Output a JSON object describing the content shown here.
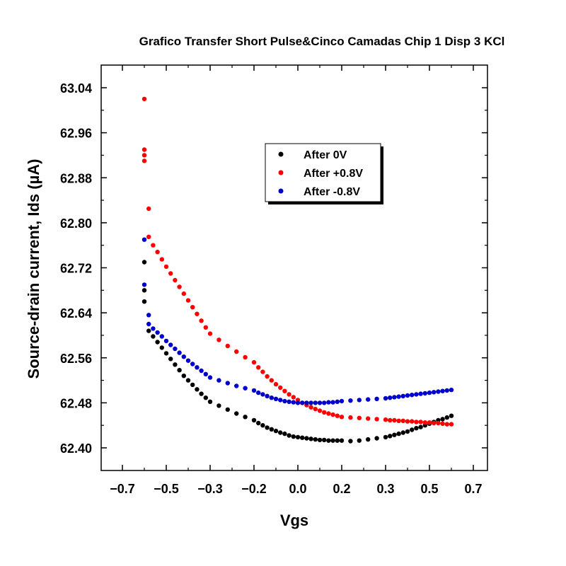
{
  "chart_data": {
    "type": "scatter",
    "title": "Grafico Transfer Short Pulse&Cinco Camadas Chip 1 Disp 3 KCl",
    "xlabel": "Vgs",
    "ylabel": "Source-drain current, Ids (µA)",
    "xlim": [
      -0.75,
      0.75
    ],
    "ylim": [
      62.36,
      63.08
    ],
    "x_ticks": [
      -0.7,
      -0.5,
      -0.3,
      -0.2,
      0.0,
      0.2,
      0.3,
      0.5,
      0.7
    ],
    "x_tick_labels": [
      "−0.7",
      "−0.5",
      "−0.3",
      "−0.2",
      "0.0",
      "0.2",
      "0.3",
      "0.5",
      "0.7"
    ],
    "y_ticks": [
      62.4,
      62.48,
      62.56,
      62.64,
      62.72,
      62.8,
      62.88,
      62.96,
      63.04
    ],
    "y_tick_labels": [
      "62.40",
      "62.48",
      "62.56",
      "62.64",
      "62.72",
      "62.80",
      "62.88",
      "62.96",
      "63.04"
    ],
    "grid": false,
    "legend_position": "top-center",
    "series": [
      {
        "name": "After 0V",
        "color": "#000000",
        "x": [
          -0.6,
          -0.6,
          -0.6,
          -0.58,
          -0.56,
          -0.54,
          -0.52,
          -0.5,
          -0.48,
          -0.46,
          -0.44,
          -0.42,
          -0.4,
          -0.38,
          -0.36,
          -0.34,
          -0.32,
          -0.3,
          -0.28,
          -0.26,
          -0.24,
          -0.22,
          -0.2,
          -0.18,
          -0.16,
          -0.14,
          -0.12,
          -0.1,
          -0.08,
          -0.06,
          -0.04,
          -0.02,
          0.0,
          0.02,
          0.04,
          0.06,
          0.08,
          0.1,
          0.12,
          0.14,
          0.16,
          0.18,
          0.2,
          0.22,
          0.24,
          0.26,
          0.28,
          0.3,
          0.32,
          0.34,
          0.36,
          0.38,
          0.4,
          0.42,
          0.44,
          0.46,
          0.48,
          0.5,
          0.52,
          0.54,
          0.56,
          0.58,
          0.6
        ],
        "y": [
          62.73,
          62.68,
          62.66,
          62.608,
          62.598,
          62.588,
          62.578,
          62.568,
          62.558,
          62.548,
          62.538,
          62.528,
          62.52,
          62.512,
          62.504,
          62.496,
          62.489,
          62.482,
          62.475,
          62.468,
          62.461,
          62.455,
          62.449,
          62.444,
          62.44,
          62.436,
          62.433,
          62.43,
          62.427,
          62.425,
          62.422,
          62.42,
          62.419,
          62.418,
          62.417,
          62.416,
          62.415,
          62.414,
          62.414,
          62.413,
          62.413,
          62.413,
          62.413,
          62.412,
          62.413,
          62.415,
          62.417,
          62.419,
          62.421,
          62.423,
          62.425,
          62.427,
          62.429,
          62.432,
          62.435,
          62.437,
          62.44,
          62.443,
          62.446,
          62.449,
          62.451,
          62.454,
          62.457
        ]
      },
      {
        "name": "After +0.8V",
        "color": "#ff0000",
        "x": [
          -0.6,
          -0.6,
          -0.6,
          -0.6,
          -0.58,
          -0.58,
          -0.56,
          -0.54,
          -0.52,
          -0.5,
          -0.48,
          -0.46,
          -0.44,
          -0.42,
          -0.4,
          -0.38,
          -0.36,
          -0.34,
          -0.32,
          -0.3,
          -0.28,
          -0.26,
          -0.24,
          -0.22,
          -0.2,
          -0.18,
          -0.16,
          -0.14,
          -0.12,
          -0.1,
          -0.08,
          -0.06,
          -0.04,
          -0.02,
          0.0,
          0.02,
          0.04,
          0.06,
          0.08,
          0.1,
          0.12,
          0.14,
          0.16,
          0.18,
          0.2,
          0.22,
          0.24,
          0.26,
          0.28,
          0.3,
          0.32,
          0.34,
          0.36,
          0.38,
          0.4,
          0.42,
          0.44,
          0.46,
          0.48,
          0.5,
          0.52,
          0.54,
          0.56,
          0.58,
          0.6
        ],
        "y": [
          63.02,
          62.93,
          62.92,
          62.91,
          62.825,
          62.775,
          62.76,
          62.748,
          62.735,
          62.722,
          62.71,
          62.698,
          62.686,
          62.674,
          62.662,
          62.65,
          62.638,
          62.626,
          62.614,
          62.603,
          62.592,
          62.581,
          62.571,
          62.561,
          62.552,
          62.543,
          62.535,
          62.527,
          62.52,
          62.513,
          62.507,
          62.501,
          62.495,
          62.49,
          62.485,
          62.48,
          62.476,
          62.472,
          62.469,
          62.466,
          62.463,
          62.461,
          62.459,
          62.457,
          62.455,
          62.454,
          62.453,
          62.452,
          62.451,
          62.45,
          62.449,
          62.449,
          62.448,
          62.448,
          62.447,
          62.447,
          62.446,
          62.446,
          62.445,
          62.445,
          62.444,
          62.444,
          62.443,
          62.442,
          62.442
        ]
      },
      {
        "name": "After -0.8V",
        "color": "#0000cc",
        "x": [
          -0.6,
          -0.6,
          -0.58,
          -0.58,
          -0.56,
          -0.54,
          -0.52,
          -0.5,
          -0.48,
          -0.46,
          -0.44,
          -0.42,
          -0.4,
          -0.38,
          -0.36,
          -0.34,
          -0.32,
          -0.3,
          -0.28,
          -0.26,
          -0.24,
          -0.22,
          -0.2,
          -0.18,
          -0.16,
          -0.14,
          -0.12,
          -0.1,
          -0.08,
          -0.06,
          -0.04,
          -0.02,
          0.0,
          0.02,
          0.04,
          0.06,
          0.08,
          0.1,
          0.12,
          0.14,
          0.16,
          0.18,
          0.2,
          0.22,
          0.24,
          0.26,
          0.28,
          0.3,
          0.32,
          0.34,
          0.36,
          0.38,
          0.4,
          0.42,
          0.44,
          0.46,
          0.48,
          0.5,
          0.52,
          0.54,
          0.56,
          0.58,
          0.6
        ],
        "y": [
          62.77,
          62.69,
          62.636,
          62.62,
          62.612,
          62.605,
          62.598,
          62.59,
          62.583,
          62.576,
          62.569,
          62.562,
          62.555,
          62.549,
          62.543,
          62.537,
          62.531,
          62.525,
          62.52,
          62.515,
          62.51,
          62.506,
          62.502,
          62.498,
          62.495,
          62.492,
          62.489,
          62.487,
          62.485,
          62.483,
          62.482,
          62.481,
          62.48,
          62.48,
          62.48,
          62.48,
          62.48,
          62.48,
          62.48,
          62.481,
          62.481,
          62.482,
          62.483,
          62.484,
          62.485,
          62.486,
          62.487,
          62.488,
          62.489,
          62.49,
          62.491,
          62.492,
          62.493,
          62.494,
          62.495,
          62.496,
          62.497,
          62.498,
          62.499,
          62.5,
          62.501,
          62.502,
          62.503
        ]
      }
    ]
  }
}
